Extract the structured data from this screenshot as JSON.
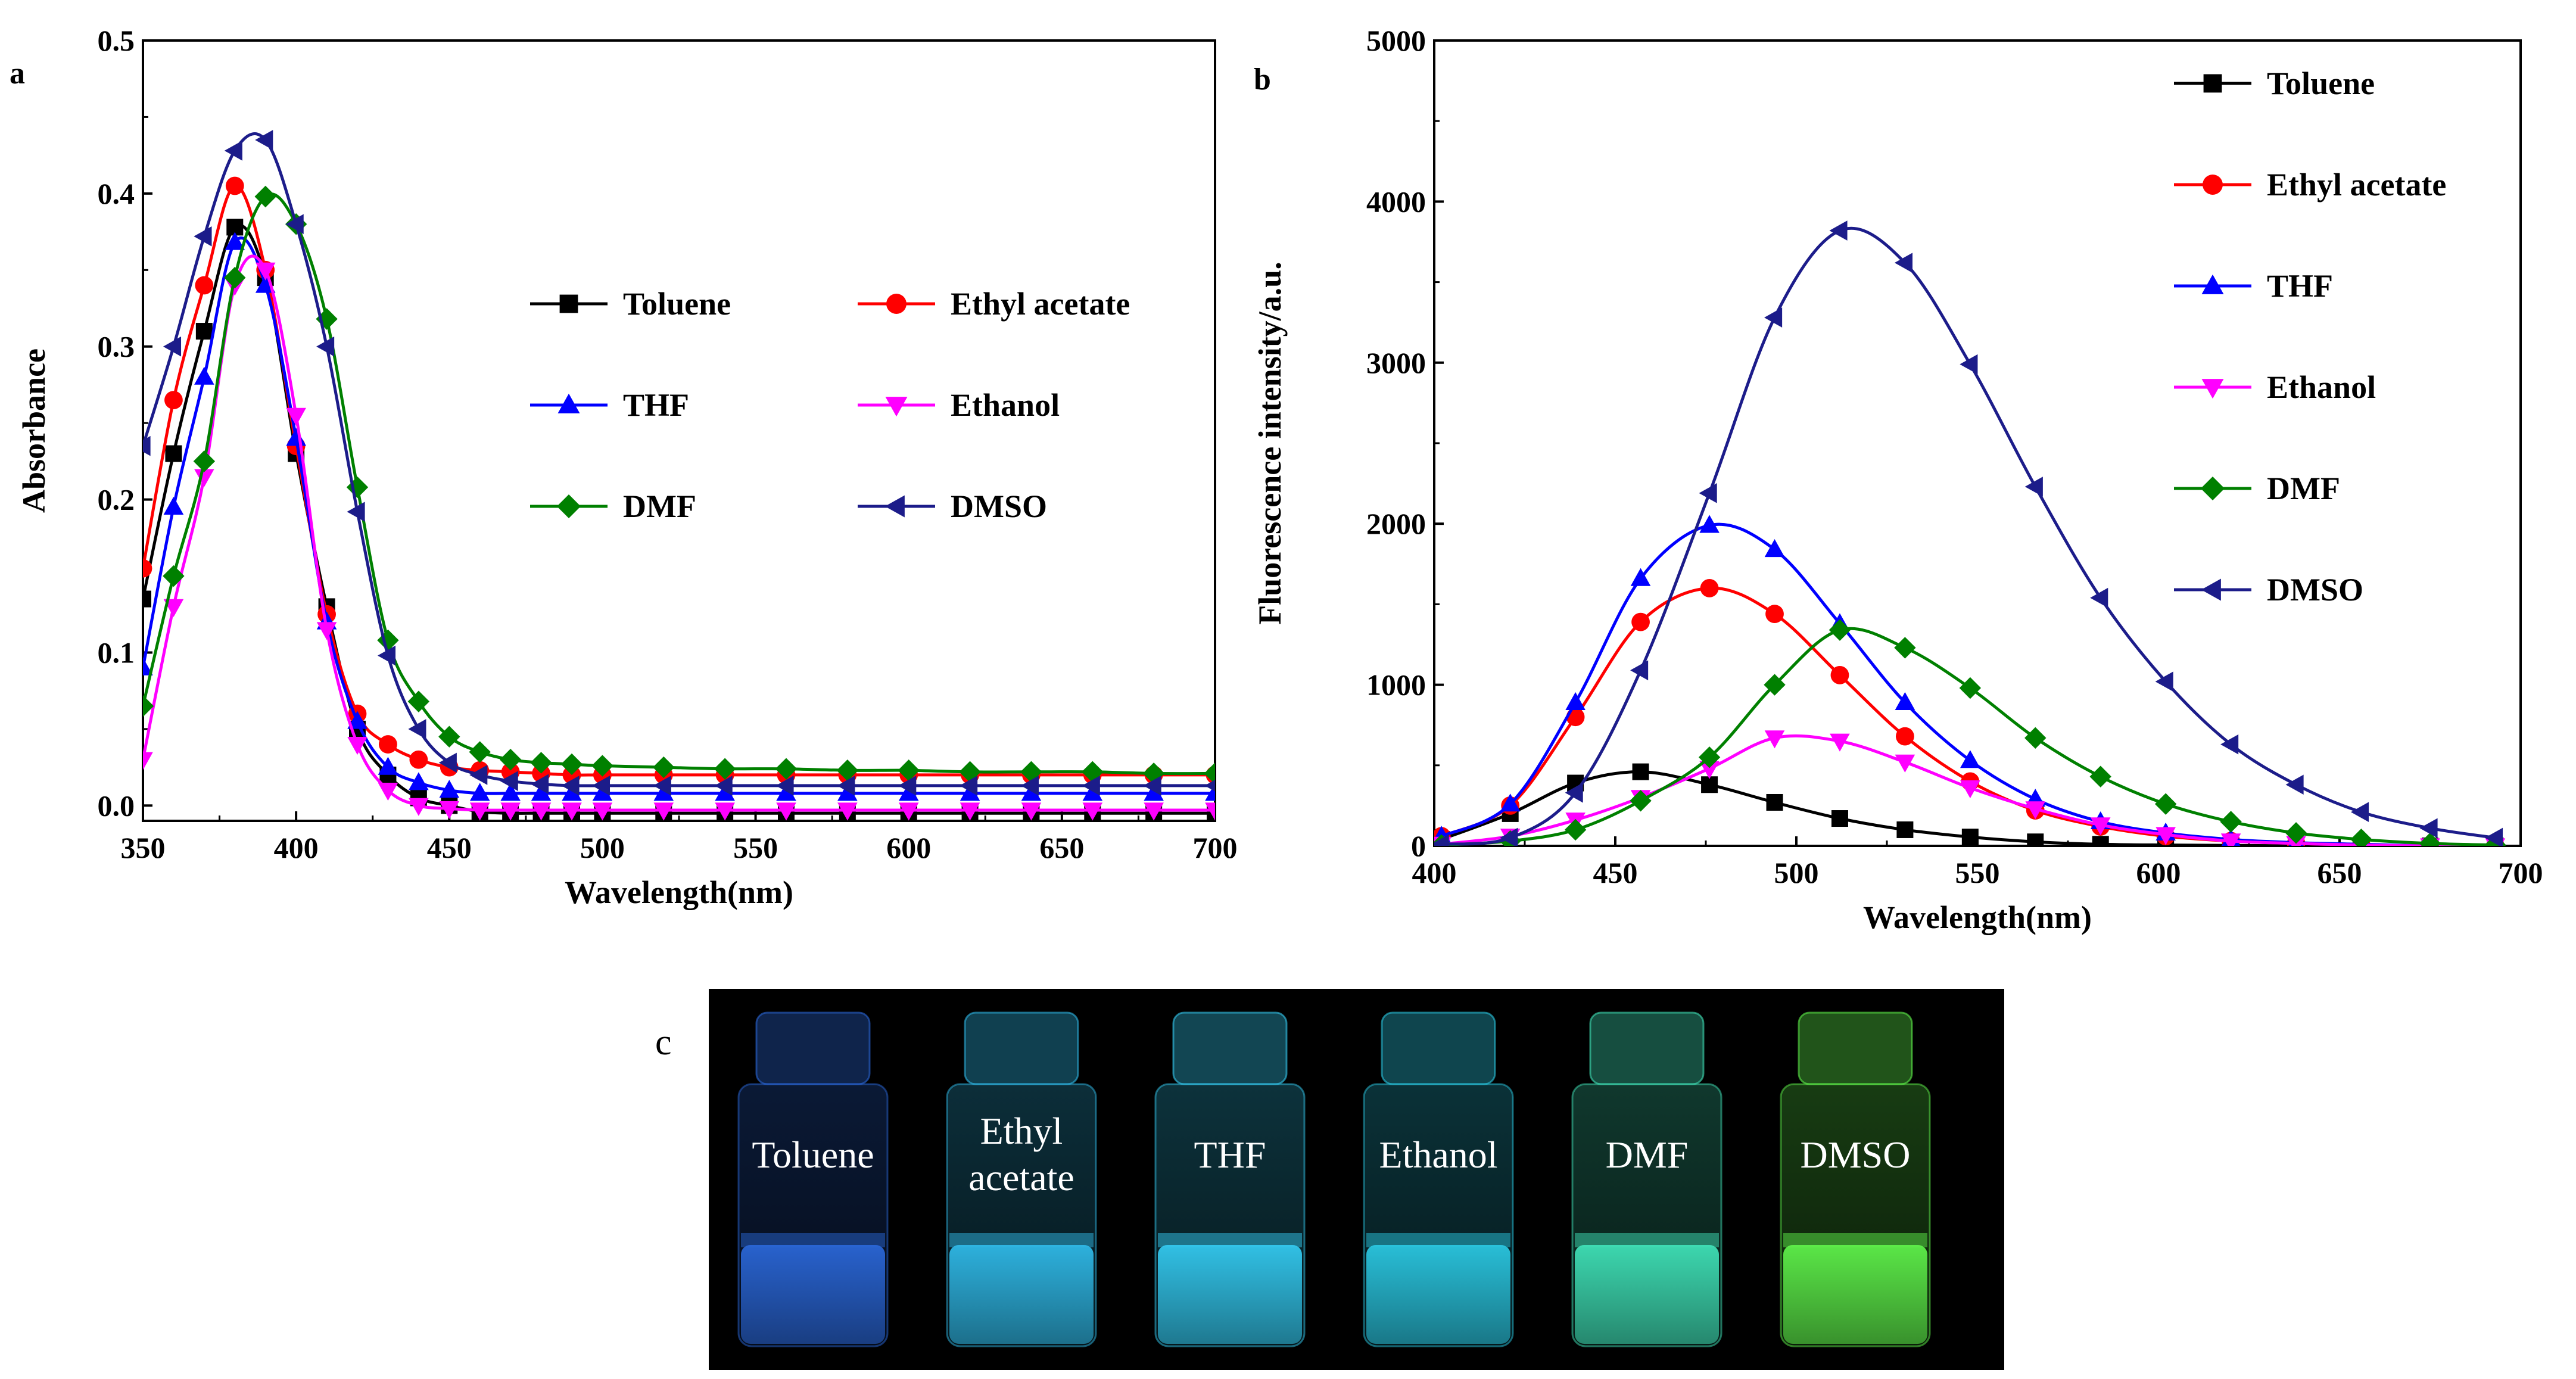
{
  "chart_data": [
    {
      "panel": "a",
      "type": "line",
      "xlabel": "Wavelength(nm)",
      "ylabel": "Absorbance",
      "xlim": [
        350,
        700
      ],
      "ylim": [
        -0.01,
        0.5
      ],
      "xticks": [
        350,
        400,
        450,
        500,
        550,
        600,
        650,
        700
      ],
      "yticks": [
        0.0,
        0.1,
        0.2,
        0.3,
        0.4,
        0.5
      ],
      "ytick_labels": [
        "0.0",
        "0.1",
        "0.2",
        "0.3",
        "0.4",
        "0.5"
      ],
      "legend_position": "center-right",
      "series": [
        {
          "name": "Toluene",
          "color": "#000000",
          "marker": "square",
          "x": [
            350,
            360,
            370,
            380,
            390,
            400,
            410,
            420,
            430,
            440,
            450,
            460,
            470,
            480,
            490,
            500,
            520,
            540,
            560,
            580,
            600,
            620,
            640,
            660,
            680,
            700
          ],
          "y": [
            0.135,
            0.23,
            0.31,
            0.378,
            0.345,
            0.23,
            0.13,
            0.05,
            0.02,
            0.005,
            0.0,
            -0.004,
            -0.005,
            -0.005,
            -0.005,
            -0.005,
            -0.005,
            -0.005,
            -0.005,
            -0.005,
            -0.005,
            -0.005,
            -0.005,
            -0.005,
            -0.005,
            -0.005
          ]
        },
        {
          "name": "Ethyl acetate",
          "color": "#ff0000",
          "marker": "circle",
          "x": [
            350,
            360,
            370,
            380,
            390,
            400,
            410,
            420,
            430,
            440,
            450,
            460,
            470,
            480,
            490,
            500,
            520,
            540,
            560,
            580,
            600,
            620,
            640,
            660,
            680,
            700
          ],
          "y": [
            0.155,
            0.265,
            0.34,
            0.405,
            0.35,
            0.235,
            0.125,
            0.06,
            0.04,
            0.03,
            0.025,
            0.023,
            0.022,
            0.021,
            0.02,
            0.02,
            0.02,
            0.02,
            0.02,
            0.02,
            0.02,
            0.02,
            0.02,
            0.02,
            0.02,
            0.02
          ]
        },
        {
          "name": "THF",
          "color": "#0000ff",
          "marker": "triangle-up",
          "x": [
            350,
            360,
            370,
            380,
            390,
            400,
            410,
            420,
            430,
            440,
            450,
            460,
            470,
            480,
            490,
            500,
            520,
            540,
            560,
            580,
            600,
            620,
            640,
            660,
            680,
            700
          ],
          "y": [
            0.09,
            0.195,
            0.28,
            0.368,
            0.34,
            0.24,
            0.12,
            0.055,
            0.025,
            0.015,
            0.01,
            0.008,
            0.008,
            0.008,
            0.008,
            0.008,
            0.008,
            0.008,
            0.008,
            0.008,
            0.008,
            0.008,
            0.008,
            0.008,
            0.008,
            0.008
          ]
        },
        {
          "name": "Ethanol",
          "color": "#ff00ff",
          "marker": "triangle-down",
          "x": [
            350,
            360,
            370,
            380,
            390,
            400,
            410,
            420,
            430,
            440,
            450,
            460,
            470,
            480,
            490,
            500,
            520,
            540,
            560,
            580,
            600,
            620,
            640,
            660,
            680,
            700
          ],
          "y": [
            0.03,
            0.13,
            0.215,
            0.34,
            0.35,
            0.255,
            0.115,
            0.04,
            0.01,
            0.0,
            -0.002,
            -0.003,
            -0.003,
            -0.003,
            -0.003,
            -0.003,
            -0.003,
            -0.003,
            -0.003,
            -0.003,
            -0.003,
            -0.003,
            -0.003,
            -0.003,
            -0.003,
            -0.003
          ]
        },
        {
          "name": "DMF",
          "color": "#008000",
          "marker": "diamond",
          "x": [
            350,
            360,
            370,
            380,
            390,
            400,
            410,
            420,
            430,
            440,
            450,
            460,
            470,
            480,
            490,
            500,
            520,
            540,
            560,
            580,
            600,
            620,
            640,
            660,
            680,
            700
          ],
          "y": [
            0.065,
            0.15,
            0.225,
            0.345,
            0.398,
            0.38,
            0.318,
            0.208,
            0.108,
            0.068,
            0.045,
            0.035,
            0.03,
            0.028,
            0.027,
            0.026,
            0.025,
            0.024,
            0.024,
            0.023,
            0.023,
            0.022,
            0.022,
            0.022,
            0.021,
            0.021
          ]
        },
        {
          "name": "DMSO",
          "color": "#1c1c8a",
          "marker": "triangle-left",
          "x": [
            350,
            360,
            370,
            380,
            390,
            400,
            410,
            420,
            430,
            440,
            450,
            460,
            470,
            480,
            490,
            500,
            520,
            540,
            560,
            580,
            600,
            620,
            640,
            660,
            680,
            700
          ],
          "y": [
            0.235,
            0.3,
            0.372,
            0.428,
            0.435,
            0.38,
            0.3,
            0.192,
            0.098,
            0.05,
            0.028,
            0.02,
            0.016,
            0.014,
            0.013,
            0.013,
            0.013,
            0.013,
            0.013,
            0.013,
            0.013,
            0.013,
            0.013,
            0.013,
            0.013,
            0.013
          ]
        }
      ]
    },
    {
      "panel": "b",
      "type": "line",
      "xlabel": "Wavelength(nm)",
      "ylabel": "Fluorescence intensity/a.u.",
      "xlim": [
        400,
        700
      ],
      "ylim": [
        0,
        5000
      ],
      "xticks": [
        400,
        450,
        500,
        550,
        600,
        650,
        700
      ],
      "yticks": [
        0,
        1000,
        2000,
        3000,
        4000,
        5000
      ],
      "ytick_labels": [
        "0",
        "1000",
        "2000",
        "3000",
        "4000",
        "5000"
      ],
      "legend_position": "top-right",
      "series": [
        {
          "name": "Toluene",
          "color": "#000000",
          "marker": "square",
          "x": [
            402,
            421,
            439,
            457,
            476,
            494,
            512,
            530,
            548,
            566,
            584,
            602,
            620,
            638,
            656,
            675,
            693
          ],
          "y": [
            40,
            200,
            390,
            460,
            380,
            270,
            170,
            100,
            55,
            25,
            10,
            5,
            3,
            0,
            0,
            0,
            0
          ]
        },
        {
          "name": "Ethyl acetate",
          "color": "#ff0000",
          "marker": "circle",
          "x": [
            402,
            421,
            439,
            457,
            476,
            494,
            512,
            530,
            548,
            566,
            584,
            602,
            620,
            638,
            656,
            675,
            693
          ],
          "y": [
            60,
            250,
            800,
            1390,
            1600,
            1440,
            1060,
            680,
            400,
            220,
            120,
            60,
            30,
            15,
            5,
            0,
            0
          ]
        },
        {
          "name": "THF",
          "color": "#0000ff",
          "marker": "triangle-up",
          "x": [
            402,
            421,
            439,
            457,
            476,
            494,
            512,
            530,
            548,
            566,
            584,
            602,
            620,
            638,
            656,
            675,
            693
          ],
          "y": [
            60,
            260,
            890,
            1660,
            1990,
            1840,
            1380,
            890,
            530,
            290,
            150,
            80,
            40,
            20,
            10,
            0,
            0
          ]
        },
        {
          "name": "Ethanol",
          "color": "#ff00ff",
          "marker": "triangle-down",
          "x": [
            402,
            421,
            439,
            457,
            476,
            494,
            512,
            530,
            548,
            566,
            584,
            602,
            620,
            638,
            656,
            675,
            693
          ],
          "y": [
            10,
            60,
            160,
            300,
            480,
            670,
            650,
            520,
            360,
            230,
            130,
            70,
            30,
            15,
            5,
            0,
            0
          ]
        },
        {
          "name": "DMF",
          "color": "#008000",
          "marker": "diamond",
          "x": [
            402,
            421,
            439,
            457,
            476,
            494,
            512,
            530,
            548,
            566,
            584,
            602,
            620,
            638,
            656,
            675,
            693
          ],
          "y": [
            5,
            30,
            100,
            280,
            550,
            1000,
            1340,
            1230,
            980,
            670,
            430,
            260,
            150,
            80,
            40,
            15,
            5
          ]
        },
        {
          "name": "DMSO",
          "color": "#1c1c8a",
          "marker": "triangle-left",
          "x": [
            402,
            421,
            439,
            457,
            476,
            494,
            512,
            530,
            548,
            566,
            584,
            602,
            620,
            638,
            656,
            675,
            693
          ],
          "y": [
            10,
            50,
            330,
            1090,
            2190,
            3280,
            3820,
            3620,
            2990,
            2230,
            1540,
            1020,
            630,
            380,
            210,
            110,
            50
          ]
        }
      ]
    }
  ],
  "photo": {
    "panel": "c",
    "vials": [
      {
        "label": "Toluene",
        "glow": "#2a66d6"
      },
      {
        "label": "Ethyl acetate",
        "glow": "#2fb8e6"
      },
      {
        "label": "THF",
        "glow": "#33c8ee"
      },
      {
        "label": "Ethanol",
        "glow": "#2ac6e0"
      },
      {
        "label": "DMF",
        "glow": "#3fe0b6"
      },
      {
        "label": "DMSO",
        "glow": "#5ef04a"
      }
    ]
  }
}
